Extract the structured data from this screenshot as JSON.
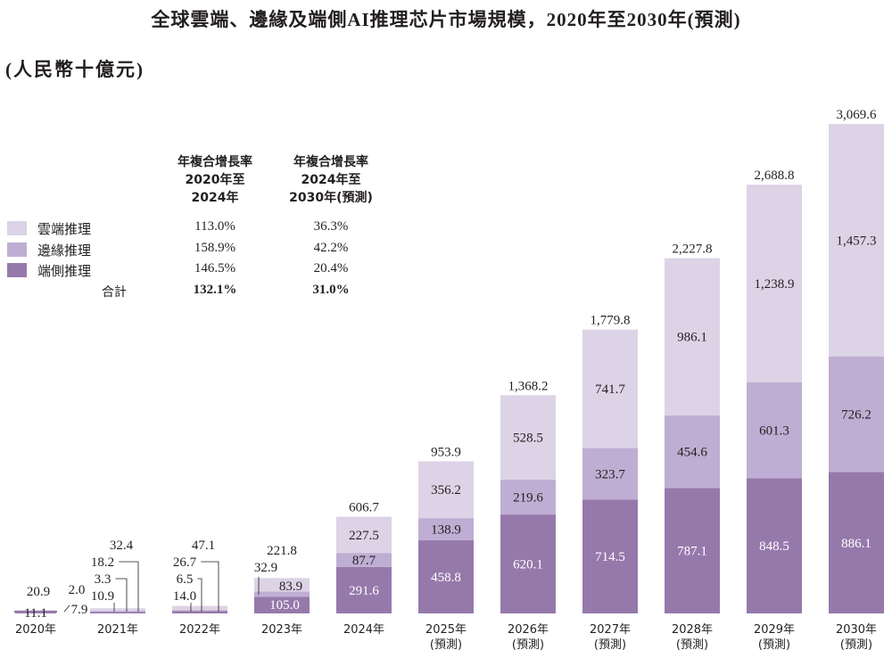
{
  "title": "全球雲端、邊緣及端側AI推理芯片市場規模，2020年至2030年(預測)",
  "unit": "(人民幣十億元)",
  "colors": {
    "cloud": "#dcd3e6",
    "edge": "#bfaed3",
    "device": "#9679ab"
  },
  "cagr_table": {
    "headers": [
      "年複合增長率\n2020年至\n2024年",
      "年複合增長率\n2024年至\n2030年(預測)"
    ],
    "rows": [
      {
        "label": "雲端推理",
        "c1": "113.0%",
        "c2": "36.3%"
      },
      {
        "label": "邊緣推理",
        "c1": "158.9%",
        "c2": "42.2%"
      },
      {
        "label": "端側推理",
        "c1": "146.5%",
        "c2": "20.4%"
      }
    ],
    "total": {
      "label": "合計",
      "c1": "132.1%",
      "c2": "31.0%"
    }
  },
  "chart_data": {
    "type": "bar",
    "stacked": true,
    "title": "全球雲端、邊緣及端側AI推理芯片市場規模，2020年至2030年(預測)",
    "ylabel": "(人民幣十億元)",
    "ylim": [
      0,
      3069.6
    ],
    "grid": false,
    "legend": "top-left",
    "categories": [
      "2020年",
      "2021年",
      "2022年",
      "2023年",
      "2024年",
      "2025年",
      "2026年",
      "2027年",
      "2028年",
      "2029年",
      "2030年"
    ],
    "forecast_note": [
      "",
      "",
      "",
      "",
      "",
      "(預測)",
      "(預測)",
      "(預測)",
      "(預測)",
      "(預測)",
      "(預測)"
    ],
    "series": [
      {
        "name": "端側推理",
        "values": [
          7.9,
          10.9,
          14.0,
          105.0,
          291.6,
          458.8,
          620.1,
          714.5,
          787.1,
          848.5,
          886.1
        ]
      },
      {
        "name": "邊緣推理",
        "values": [
          2.0,
          3.3,
          6.5,
          32.9,
          87.7,
          138.9,
          219.6,
          323.7,
          454.6,
          601.3,
          726.2
        ]
      },
      {
        "name": "雲端推理",
        "values": [
          11.1,
          18.2,
          26.7,
          83.9,
          227.5,
          356.2,
          528.5,
          741.7,
          986.1,
          1238.9,
          1457.3
        ]
      }
    ],
    "totals": [
      "20.9",
      "32.4",
      "47.1",
      "221.8",
      "606.7",
      "953.9",
      "1,368.2",
      "1,779.8",
      "2,227.8",
      "2,688.8",
      "3,069.6"
    ]
  }
}
